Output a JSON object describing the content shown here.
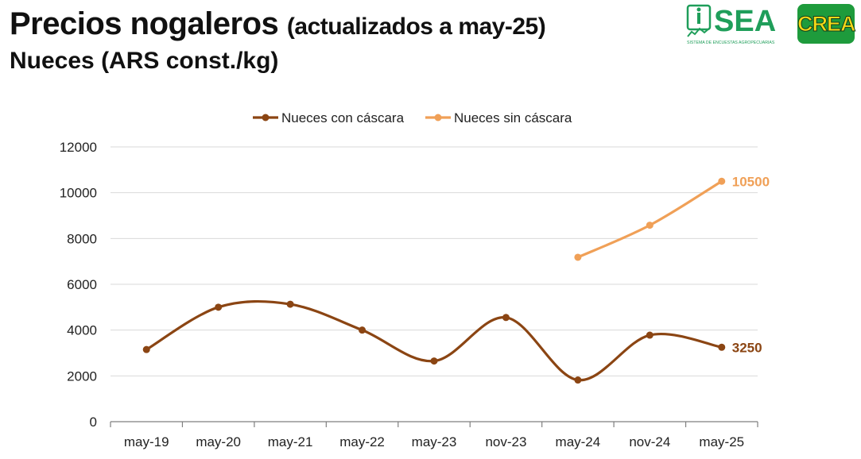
{
  "header": {
    "title_main": "Precios nogaleros",
    "title_sub": "(actualizados a may-25)",
    "subtitle": "Nueces (ARS const./kg)"
  },
  "logos": {
    "sea": {
      "text": "SEA",
      "tagline": "SISTEMA DE ENCUESTAS AGROPECUARIAS",
      "color": "#1f9e5a"
    },
    "crea": {
      "text": "CREA",
      "bg_color": "#1e9b3c",
      "text_color": "#f5d917"
    }
  },
  "chart_data": {
    "type": "line",
    "title": "",
    "xlabel": "",
    "ylabel": "",
    "categories": [
      "may-19",
      "may-20",
      "may-21",
      "may-22",
      "may-23",
      "nov-23",
      "may-24",
      "nov-24",
      "may-25"
    ],
    "ylim": [
      0,
      12000
    ],
    "yticks": [
      0,
      2000,
      4000,
      6000,
      8000,
      10000,
      12000
    ],
    "grid": true,
    "smooth": true,
    "legend_position": "top-center",
    "series": [
      {
        "name": "Nueces con cáscara",
        "color": "#8b4513",
        "values": [
          3150,
          5000,
          5130,
          4000,
          2650,
          4550,
          1820,
          3780,
          3250
        ],
        "end_label": "3250"
      },
      {
        "name": "Nueces sin cáscara",
        "color": "#f0a057",
        "values": [
          null,
          null,
          null,
          null,
          null,
          null,
          7180,
          8580,
          10500
        ],
        "end_label": "10500"
      }
    ]
  }
}
